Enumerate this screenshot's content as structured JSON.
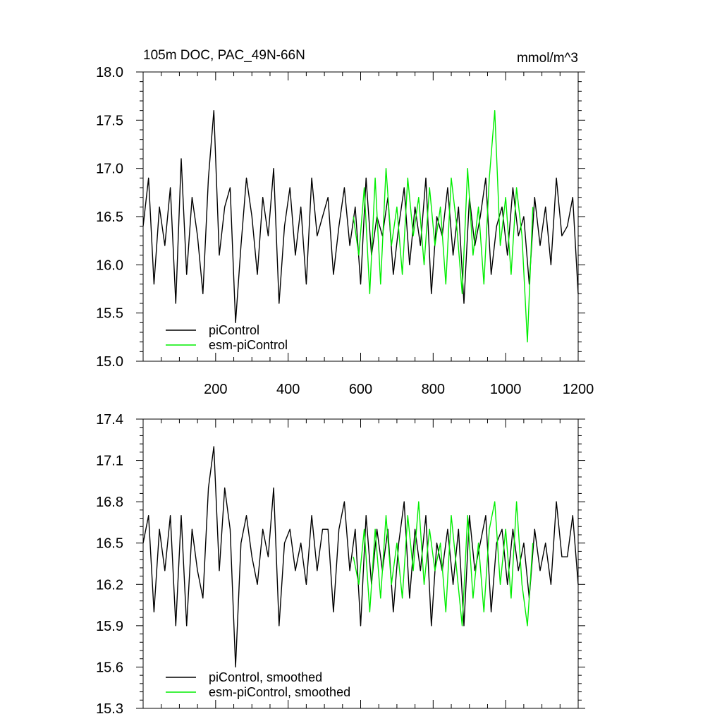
{
  "chart_data": [
    {
      "type": "line",
      "title": "105m DOC, PAC_49N-66N",
      "units": "mmol/m^3",
      "xlabel": "",
      "ylabel": "",
      "xlim": [
        0,
        1200
      ],
      "ylim": [
        15.0,
        18.0
      ],
      "x_ticks": [
        200,
        400,
        600,
        800,
        1000,
        1200
      ],
      "y_ticks": [
        "15.0",
        "15.5",
        "16.0",
        "16.5",
        "17.0",
        "17.5",
        "18.0"
      ],
      "x_tick_labels_visible": true,
      "legend_position": "bottom-left",
      "series": [
        {
          "name": "piControl",
          "color": "#000000",
          "x": [
            0,
            15,
            30,
            45,
            60,
            75,
            90,
            105,
            120,
            135,
            150,
            165,
            180,
            195,
            210,
            225,
            240,
            255,
            270,
            285,
            300,
            315,
            330,
            345,
            360,
            375,
            390,
            405,
            420,
            435,
            450,
            465,
            480,
            495,
            510,
            525,
            540,
            555,
            570,
            585,
            600,
            615,
            630,
            645,
            660,
            675,
            690,
            705,
            720,
            735,
            750,
            765,
            780,
            795,
            810,
            825,
            840,
            855,
            870,
            885,
            900,
            915,
            930,
            945,
            960,
            975,
            990,
            1005,
            1020,
            1035,
            1050,
            1065,
            1080,
            1095,
            1110,
            1125,
            1140,
            1155,
            1170,
            1185,
            1200
          ],
          "values": [
            16.4,
            16.9,
            15.8,
            16.6,
            16.2,
            16.8,
            15.6,
            17.1,
            15.9,
            16.7,
            16.3,
            15.7,
            16.9,
            17.6,
            16.1,
            16.6,
            16.8,
            15.4,
            16.2,
            16.9,
            16.5,
            15.9,
            16.7,
            16.3,
            17.0,
            15.6,
            16.4,
            16.8,
            16.1,
            16.6,
            15.8,
            16.9,
            16.3,
            16.5,
            16.7,
            15.9,
            16.4,
            16.8,
            16.2,
            16.6,
            15.8,
            16.9,
            16.1,
            16.5,
            16.3,
            16.7,
            15.9,
            16.4,
            16.8,
            16.0,
            16.6,
            16.2,
            16.9,
            15.7,
            16.5,
            16.3,
            16.8,
            16.1,
            16.6,
            15.6,
            16.7,
            16.2,
            16.5,
            16.9,
            15.9,
            16.4,
            16.6,
            16.1,
            16.8,
            16.3,
            16.5,
            15.8,
            16.7,
            16.2,
            16.6,
            16.0,
            16.9,
            16.3,
            16.4,
            16.7,
            15.7
          ]
        },
        {
          "name": "esm-piControl",
          "color": "#00ee00",
          "x": [
            580,
            595,
            610,
            625,
            640,
            655,
            670,
            685,
            700,
            715,
            730,
            745,
            760,
            775,
            790,
            805,
            820,
            835,
            850,
            865,
            880,
            895,
            910,
            925,
            940,
            955,
            970,
            985,
            1000,
            1015,
            1030,
            1045,
            1060,
            1075
          ],
          "values": [
            16.5,
            16.1,
            16.8,
            15.7,
            16.9,
            15.8,
            17.0,
            16.2,
            16.6,
            15.9,
            16.9,
            16.3,
            16.7,
            16.0,
            16.8,
            16.2,
            16.6,
            15.8,
            16.9,
            16.4,
            15.7,
            17.0,
            16.1,
            16.6,
            15.8,
            16.9,
            17.6,
            16.2,
            16.7,
            15.9,
            16.8,
            16.3,
            15.2,
            16.6
          ]
        }
      ]
    },
    {
      "type": "line",
      "title": "",
      "xlabel": "",
      "ylabel": "",
      "xlim": [
        0,
        1200
      ],
      "ylim": [
        15.3,
        17.4
      ],
      "y_ticks": [
        "15.3",
        "15.6",
        "15.9",
        "16.2",
        "16.5",
        "16.8",
        "17.1",
        "17.4"
      ],
      "x_tick_labels_visible": false,
      "legend_position": "bottom-left",
      "series": [
        {
          "name": "piControl, smoothed",
          "color": "#000000",
          "x": [
            0,
            15,
            30,
            45,
            60,
            75,
            90,
            105,
            120,
            135,
            150,
            165,
            180,
            195,
            210,
            225,
            240,
            255,
            270,
            285,
            300,
            315,
            330,
            345,
            360,
            375,
            390,
            405,
            420,
            435,
            450,
            465,
            480,
            495,
            510,
            525,
            540,
            555,
            570,
            585,
            600,
            615,
            630,
            645,
            660,
            675,
            690,
            705,
            720,
            735,
            750,
            765,
            780,
            795,
            810,
            825,
            840,
            855,
            870,
            885,
            900,
            915,
            930,
            945,
            960,
            975,
            990,
            1005,
            1020,
            1035,
            1050,
            1065,
            1080,
            1095,
            1110,
            1125,
            1140,
            1155,
            1170,
            1185,
            1200
          ],
          "values": [
            16.5,
            16.7,
            16.0,
            16.6,
            16.3,
            16.7,
            15.9,
            16.7,
            15.9,
            16.6,
            16.3,
            16.1,
            16.9,
            17.2,
            16.3,
            16.9,
            16.6,
            15.6,
            16.5,
            16.7,
            16.4,
            16.2,
            16.6,
            16.4,
            16.9,
            15.9,
            16.5,
            16.6,
            16.3,
            16.5,
            16.2,
            16.7,
            16.3,
            16.6,
            16.6,
            16.0,
            16.6,
            16.8,
            16.3,
            16.6,
            15.9,
            16.7,
            16.2,
            16.6,
            16.3,
            16.6,
            16.0,
            16.5,
            16.8,
            16.1,
            16.6,
            16.3,
            16.7,
            15.9,
            16.5,
            16.3,
            16.6,
            16.2,
            16.6,
            15.9,
            16.7,
            16.3,
            16.5,
            16.7,
            16.0,
            16.5,
            16.6,
            16.2,
            16.6,
            16.3,
            16.5,
            16.1,
            16.6,
            16.3,
            16.5,
            16.2,
            16.8,
            16.4,
            16.4,
            16.7,
            16.2
          ]
        },
        {
          "name": "esm-piControl, smoothed",
          "color": "#00ee00",
          "x": [
            580,
            595,
            610,
            625,
            640,
            655,
            670,
            685,
            700,
            715,
            730,
            745,
            760,
            775,
            790,
            805,
            820,
            835,
            850,
            865,
            880,
            895,
            910,
            925,
            940,
            955,
            970,
            985,
            1000,
            1015,
            1030,
            1045,
            1060,
            1075
          ],
          "values": [
            16.4,
            16.2,
            16.6,
            16.0,
            16.6,
            16.1,
            16.7,
            16.2,
            16.5,
            16.1,
            16.7,
            16.3,
            16.8,
            16.2,
            16.6,
            16.3,
            16.5,
            16.0,
            16.7,
            16.3,
            15.9,
            16.7,
            16.1,
            16.5,
            16.0,
            16.6,
            16.8,
            16.2,
            16.6,
            16.1,
            16.8,
            16.2,
            15.9,
            16.5
          ]
        }
      ]
    }
  ]
}
